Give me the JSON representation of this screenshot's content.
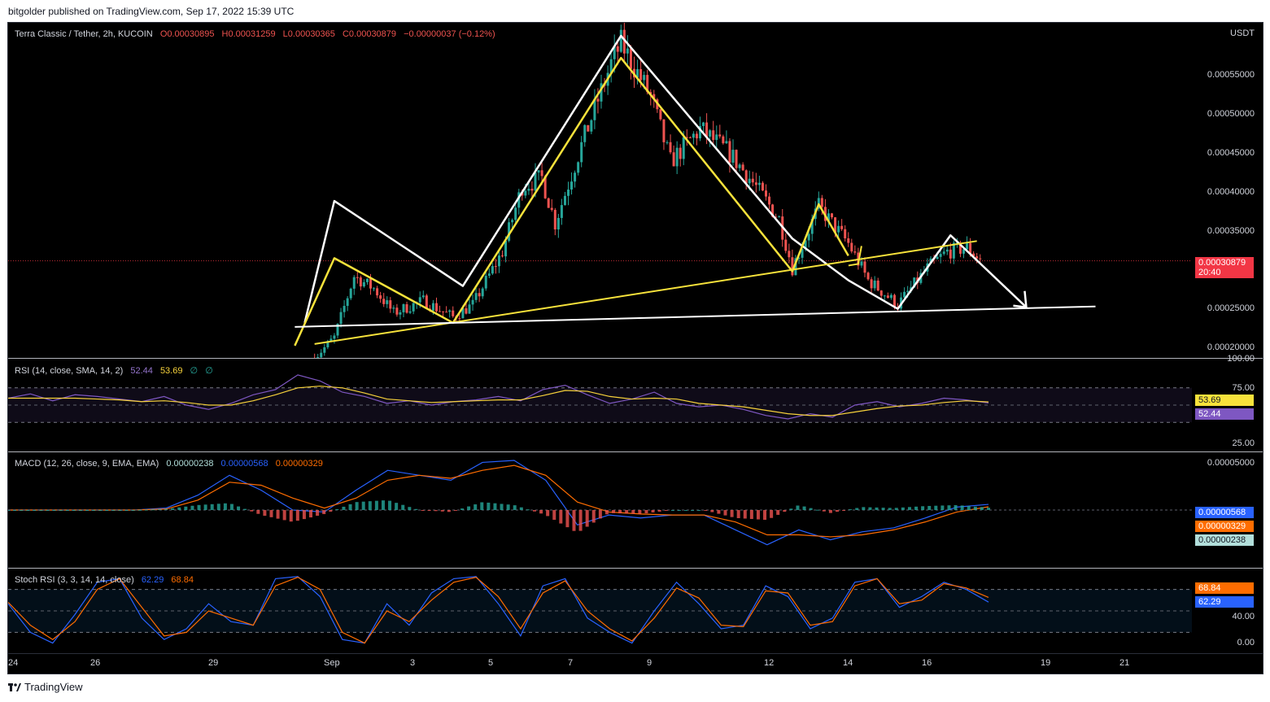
{
  "header": {
    "published": "bitgolder published on TradingView.com, Sep 17, 2022 15:39 UTC"
  },
  "footer": {
    "brand": "TradingView"
  },
  "symbol": {
    "title": "Terra Classic / Tether, 2h, KUCOIN",
    "o": "O0.00030895",
    "h": "H0.00031259",
    "l": "L0.00030365",
    "c": "C0.00030879",
    "change": "−0.00000037 (−0.12%)",
    "currency": "USDT",
    "last_price": "0.00030879",
    "countdown": "20:40"
  },
  "price_axis": [
    "0.00055000",
    "0.00050000",
    "0.00045000",
    "0.00040000",
    "0.00035000",
    "0.00025000",
    "0.00020000"
  ],
  "rsi": {
    "legend": "RSI (14, close, SMA, 14, 2)",
    "v1": "52.44",
    "v2": "53.69",
    "v3": "∅",
    "v4": "∅",
    "axis": [
      "100.00",
      "75.00",
      "25.00"
    ],
    "badge_sma": "53.69",
    "badge_rsi": "52.44"
  },
  "macd": {
    "legend": "MACD (12, 26, close, 9, EMA, EMA)",
    "hist": "0.00000238",
    "macd": "0.00000568",
    "signal": "0.00000329",
    "axis_top": "0.00005000",
    "badge_macd": "0.00000568",
    "badge_signal": "0.00000329",
    "badge_hist": "0.00000238"
  },
  "stoch": {
    "legend": "Stoch RSI (3, 3, 14, 14, close)",
    "k": "62.29",
    "d": "68.84",
    "axis": [
      "40.00",
      "0.00"
    ],
    "badge_d": "68.84",
    "badge_k": "62.29"
  },
  "time_axis": [
    "24",
    "26",
    "29",
    "Sep",
    "3",
    "5",
    "7",
    "9",
    "12",
    "14",
    "16",
    "19",
    "21"
  ],
  "colors": {
    "up": "#26a69a",
    "down": "#ef5350",
    "yellow": "#f7e23b",
    "white": "#ffffff",
    "rsi": "#7e57c2",
    "rsi_sma": "#f7d23b",
    "macd": "#2962ff",
    "signal": "#ff6d00",
    "price_badge": "#f23645",
    "stoch_k": "#2962ff",
    "stoch_d": "#ff6d00"
  },
  "chart_data": [
    {
      "type": "candlestick",
      "title": "Terra Classic / Tether, 2h, KUCOIN",
      "ylabel": "USDT",
      "ylim": [
        0.00019,
        0.0006
      ],
      "x_ticks": [
        "24",
        "26",
        "29",
        "Sep",
        "3",
        "5",
        "7",
        "9",
        "12",
        "14",
        "16",
        "19",
        "21"
      ],
      "close_path": [
        {
          "x": "Aug 31 18:00",
          "y": 0.00019
        },
        {
          "x": "Sep 1 06:00",
          "y": 0.000215
        },
        {
          "x": "Sep 1 18:00",
          "y": 0.00029
        },
        {
          "x": "Sep 2 06:00",
          "y": 0.000275
        },
        {
          "x": "Sep 2 18:00",
          "y": 0.000245
        },
        {
          "x": "Sep 3 12:00",
          "y": 0.00026
        },
        {
          "x": "Sep 4 06:00",
          "y": 0.00024
        },
        {
          "x": "Sep 4 18:00",
          "y": 0.000255
        },
        {
          "x": "Sep 5 12:00",
          "y": 0.00032
        },
        {
          "x": "Sep 6 00:00",
          "y": 0.0004
        },
        {
          "x": "Sep 6 12:00",
          "y": 0.00041
        },
        {
          "x": "Sep 6 20:00",
          "y": 0.000355
        },
        {
          "x": "Sep 7 12:00",
          "y": 0.00045
        },
        {
          "x": "Sep 8 06:00",
          "y": 0.00055
        },
        {
          "x": "Sep 8 12:00",
          "y": 0.000575
        },
        {
          "x": "Sep 9 06:00",
          "y": 0.00051
        },
        {
          "x": "Sep 9 18:00",
          "y": 0.00043
        },
        {
          "x": "Sep 10 12:00",
          "y": 0.00047
        },
        {
          "x": "Sep 11 06:00",
          "y": 0.00044
        },
        {
          "x": "Sep 11 18:00",
          "y": 0.00041
        },
        {
          "x": "Sep 12 12:00",
          "y": 0.00036
        },
        {
          "x": "Sep 12 20:00",
          "y": 0.0003
        },
        {
          "x": "Sep 13 12:00",
          "y": 0.000375
        },
        {
          "x": "Sep 14 06:00",
          "y": 0.00033
        },
        {
          "x": "Sep 14 18:00",
          "y": 0.000285
        },
        {
          "x": "Sep 15 12:00",
          "y": 0.000255
        },
        {
          "x": "Sep 16 06:00",
          "y": 0.0003
        },
        {
          "x": "Sep 16 18:00",
          "y": 0.00032
        },
        {
          "x": "Sep 17 06:00",
          "y": 0.000325
        },
        {
          "x": "Sep 17 15:00",
          "y": 0.00030879
        }
      ],
      "last_close": 0.00030879
    },
    {
      "type": "line",
      "title": "RSI (14, close, SMA, 14, 2)",
      "ylim": [
        0,
        100
      ],
      "bands": [
        30,
        70
      ],
      "series": [
        {
          "name": "RSI",
          "last": 52.44,
          "values": [
            58,
            63,
            55,
            62,
            60,
            57,
            54,
            60,
            50,
            45,
            52,
            62,
            68,
            85,
            78,
            65,
            60,
            52,
            55,
            50,
            54,
            56,
            60,
            55,
            68,
            73,
            62,
            52,
            57,
            65,
            52,
            48,
            50,
            45,
            38,
            34,
            40,
            36,
            50,
            54,
            48,
            52,
            58,
            56,
            52.44
          ]
        },
        {
          "name": "SMA",
          "last": 53.69,
          "values": [
            58,
            58,
            58,
            58,
            57,
            56,
            54,
            55,
            53,
            50,
            50,
            55,
            62,
            70,
            72,
            70,
            64,
            57,
            55,
            53,
            54,
            55,
            56,
            56,
            61,
            67,
            66,
            60,
            57,
            58,
            57,
            52,
            50,
            48,
            44,
            40,
            38,
            38,
            42,
            46,
            49,
            50,
            53,
            55,
            53.69
          ]
        }
      ]
    },
    {
      "type": "line",
      "title": "MACD (12, 26, close, 9, EMA, EMA)",
      "ylim": [
        -5e-05,
        5e-05
      ],
      "series": [
        {
          "name": "MACD",
          "last": 5.68e-06,
          "values": [
            0,
            0,
            0,
            0,
            0,
            2e-06,
            1.5e-05,
            3.5e-05,
            2e-05,
            0,
            -2e-06,
            2e-05,
            4e-05,
            3.5e-05,
            3e-05,
            4.8e-05,
            5e-05,
            3e-05,
            -1.5e-05,
            -5e-06,
            -8e-06,
            -5e-06,
            -5e-06,
            -2e-05,
            -3.5e-05,
            -2e-05,
            -3e-05,
            -2.2e-05,
            -1.8e-05,
            -8e-06,
            3e-06,
            5.68e-06
          ]
        },
        {
          "name": "Signal",
          "last": 3.29e-06,
          "values": [
            0,
            0,
            0,
            0,
            0,
            1e-06,
            1e-05,
            2.8e-05,
            2.5e-05,
            1.2e-05,
            2e-06,
            1.2e-05,
            3e-05,
            3.5e-05,
            3.2e-05,
            4e-05,
            4.5e-05,
            3.5e-05,
            8e-06,
            -2e-06,
            -4e-06,
            -5e-06,
            -5e-06,
            -1.2e-05,
            -2.5e-05,
            -2.5e-05,
            -2.7e-05,
            -2.5e-05,
            -2e-05,
            -1.2e-05,
            -2e-06,
            3.29e-06
          ]
        },
        {
          "name": "Histogram",
          "last": 2.38e-06
        }
      ]
    },
    {
      "type": "line",
      "title": "Stoch RSI (3, 3, 14, 14, close)",
      "ylim": [
        0,
        100
      ],
      "bands": [
        20,
        80
      ],
      "series": [
        {
          "name": "K",
          "last": 62.29,
          "values": [
            60,
            20,
            5,
            45,
            90,
            95,
            40,
            10,
            25,
            60,
            35,
            30,
            95,
            98,
            70,
            10,
            5,
            60,
            30,
            75,
            95,
            98,
            60,
            15,
            85,
            95,
            40,
            20,
            5,
            50,
            90,
            60,
            25,
            30,
            85,
            70,
            25,
            40,
            90,
            95,
            55,
            70,
            90,
            80,
            62.29
          ]
        },
        {
          "name": "D",
          "last": 68.84,
          "values": [
            62,
            30,
            10,
            35,
            80,
            95,
            55,
            15,
            20,
            50,
            40,
            30,
            85,
            97,
            80,
            20,
            5,
            50,
            35,
            65,
            90,
            97,
            70,
            25,
            75,
            92,
            50,
            25,
            8,
            40,
            82,
            68,
            30,
            28,
            78,
            75,
            30,
            35,
            85,
            95,
            60,
            65,
            88,
            82,
            68.84
          ]
        }
      ]
    }
  ]
}
